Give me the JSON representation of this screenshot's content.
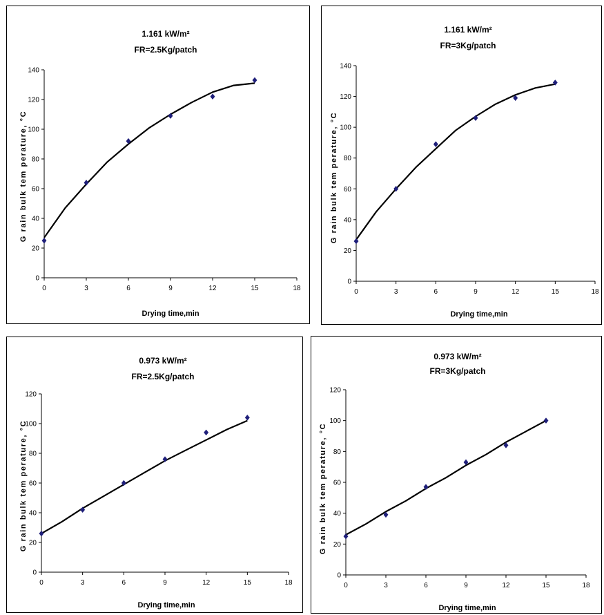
{
  "marker_color": "#1f1f7a",
  "line_color": "#000000",
  "chart_data": [
    {
      "type": "scatter",
      "title": "1.161 kW/m²",
      "subtitle": "FR=2.5Kg/patch",
      "xlabel": "Drying time,min",
      "ylabel": "G rain  bulk  tem perature, °C",
      "xlim": [
        0,
        18
      ],
      "ylim": [
        0,
        140
      ],
      "xticks": [
        0,
        3,
        6,
        9,
        12,
        15,
        18
      ],
      "yticks": [
        0,
        20,
        40,
        60,
        80,
        100,
        120,
        140
      ],
      "x": [
        0,
        3,
        6,
        9,
        12,
        15
      ],
      "y": [
        25,
        64,
        92,
        109,
        122,
        133
      ],
      "trend": [
        {
          "x": 0,
          "y": 27
        },
        {
          "x": 1.5,
          "y": 47
        },
        {
          "x": 3,
          "y": 63
        },
        {
          "x": 4.5,
          "y": 78
        },
        {
          "x": 6,
          "y": 90
        },
        {
          "x": 7.5,
          "y": 101
        },
        {
          "x": 9,
          "y": 110
        },
        {
          "x": 10.5,
          "y": 118
        },
        {
          "x": 12,
          "y": 125
        },
        {
          "x": 13.5,
          "y": 129.5
        },
        {
          "x": 15,
          "y": 131
        }
      ]
    },
    {
      "type": "scatter",
      "title": "1.161 kW/m²",
      "subtitle": "FR=3Kg/patch",
      "xlabel": "Drying time,min",
      "ylabel": "G rain  bulk  tem perature, °C",
      "xlim": [
        0,
        18
      ],
      "ylim": [
        0,
        140
      ],
      "xticks": [
        0,
        3,
        6,
        9,
        12,
        15,
        18
      ],
      "yticks": [
        0,
        20,
        40,
        60,
        80,
        100,
        120,
        140
      ],
      "x": [
        0,
        3,
        6,
        9,
        12,
        15
      ],
      "y": [
        26,
        60,
        89,
        106,
        119,
        129
      ],
      "trend": [
        {
          "x": 0,
          "y": 27
        },
        {
          "x": 1.5,
          "y": 45
        },
        {
          "x": 3,
          "y": 60
        },
        {
          "x": 4.5,
          "y": 74
        },
        {
          "x": 6,
          "y": 86
        },
        {
          "x": 7.5,
          "y": 98
        },
        {
          "x": 9,
          "y": 107
        },
        {
          "x": 10.5,
          "y": 115
        },
        {
          "x": 12,
          "y": 121
        },
        {
          "x": 13.5,
          "y": 125.5
        },
        {
          "x": 15,
          "y": 128
        }
      ]
    },
    {
      "type": "scatter",
      "title": "0.973 kW/m²",
      "subtitle": "FR=2.5Kg/patch",
      "xlabel": "Drying time,min",
      "ylabel": "G rain  bulk  tem perature, °C",
      "xlim": [
        0,
        18
      ],
      "ylim": [
        0,
        120
      ],
      "xticks": [
        0,
        3,
        6,
        9,
        12,
        15,
        18
      ],
      "yticks": [
        0,
        20,
        40,
        60,
        80,
        100,
        120
      ],
      "x": [
        0,
        3,
        6,
        9,
        12,
        15
      ],
      "y": [
        26,
        42,
        60,
        76,
        94,
        104
      ],
      "trend": [
        {
          "x": 0,
          "y": 26
        },
        {
          "x": 1.5,
          "y": 34
        },
        {
          "x": 3,
          "y": 43
        },
        {
          "x": 4.5,
          "y": 51
        },
        {
          "x": 6,
          "y": 59
        },
        {
          "x": 7.5,
          "y": 67
        },
        {
          "x": 9,
          "y": 75
        },
        {
          "x": 10.5,
          "y": 82
        },
        {
          "x": 12,
          "y": 89
        },
        {
          "x": 13.5,
          "y": 96
        },
        {
          "x": 15,
          "y": 102
        }
      ]
    },
    {
      "type": "scatter",
      "title": "0.973 kW/m²",
      "subtitle": "FR=3Kg/patch",
      "xlabel": "Drying time,min",
      "ylabel": "G rain  bulk  tem perature, °C",
      "xlim": [
        0,
        18
      ],
      "ylim": [
        0,
        120
      ],
      "xticks": [
        0,
        3,
        6,
        9,
        12,
        15,
        18
      ],
      "yticks": [
        0,
        20,
        40,
        60,
        80,
        100,
        120
      ],
      "x": [
        0,
        3,
        6,
        9,
        12,
        15
      ],
      "y": [
        25,
        39,
        57,
        73,
        84,
        100
      ],
      "trend": [
        {
          "x": 0,
          "y": 26
        },
        {
          "x": 1.5,
          "y": 33
        },
        {
          "x": 3,
          "y": 41
        },
        {
          "x": 4.5,
          "y": 48
        },
        {
          "x": 6,
          "y": 56
        },
        {
          "x": 7.5,
          "y": 63
        },
        {
          "x": 9,
          "y": 71
        },
        {
          "x": 10.5,
          "y": 78
        },
        {
          "x": 12,
          "y": 86
        },
        {
          "x": 13.5,
          "y": 93
        },
        {
          "x": 15,
          "y": 100
        }
      ]
    }
  ]
}
